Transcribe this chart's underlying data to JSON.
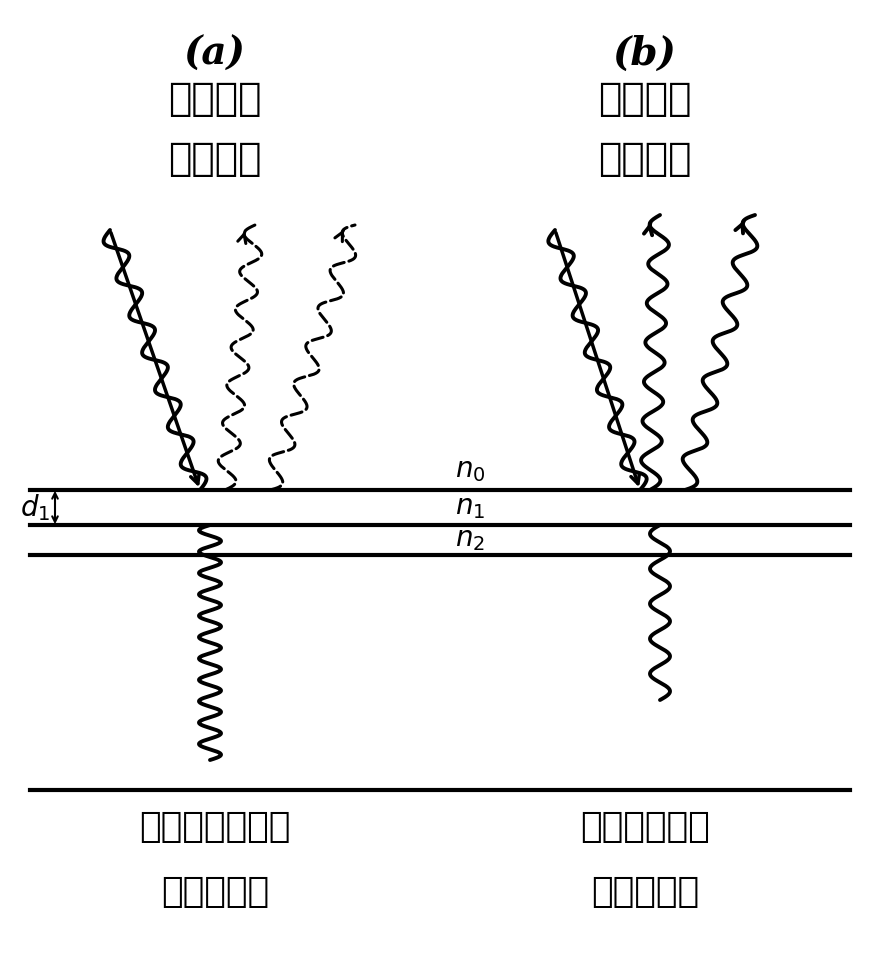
{
  "title_a": "(a)",
  "title_b": "(b)",
  "subtitle_a1": "相消干涉",
  "subtitle_a2": "无反射波",
  "subtitle_b1": "相长干涉",
  "subtitle_b2": "有反射波",
  "bottom_a1": "所有入射光透射",
  "bottom_a2": "进入晶硅层",
  "bottom_b1": "无入射光透射",
  "bottom_b2": "进入晶硅层",
  "label_n0": "$n_0$",
  "label_n1": "$n_1$",
  "label_n2": "$n_2$",
  "label_d1": "$d_1$",
  "bg_color": "#ffffff",
  "text_color": "#000000"
}
